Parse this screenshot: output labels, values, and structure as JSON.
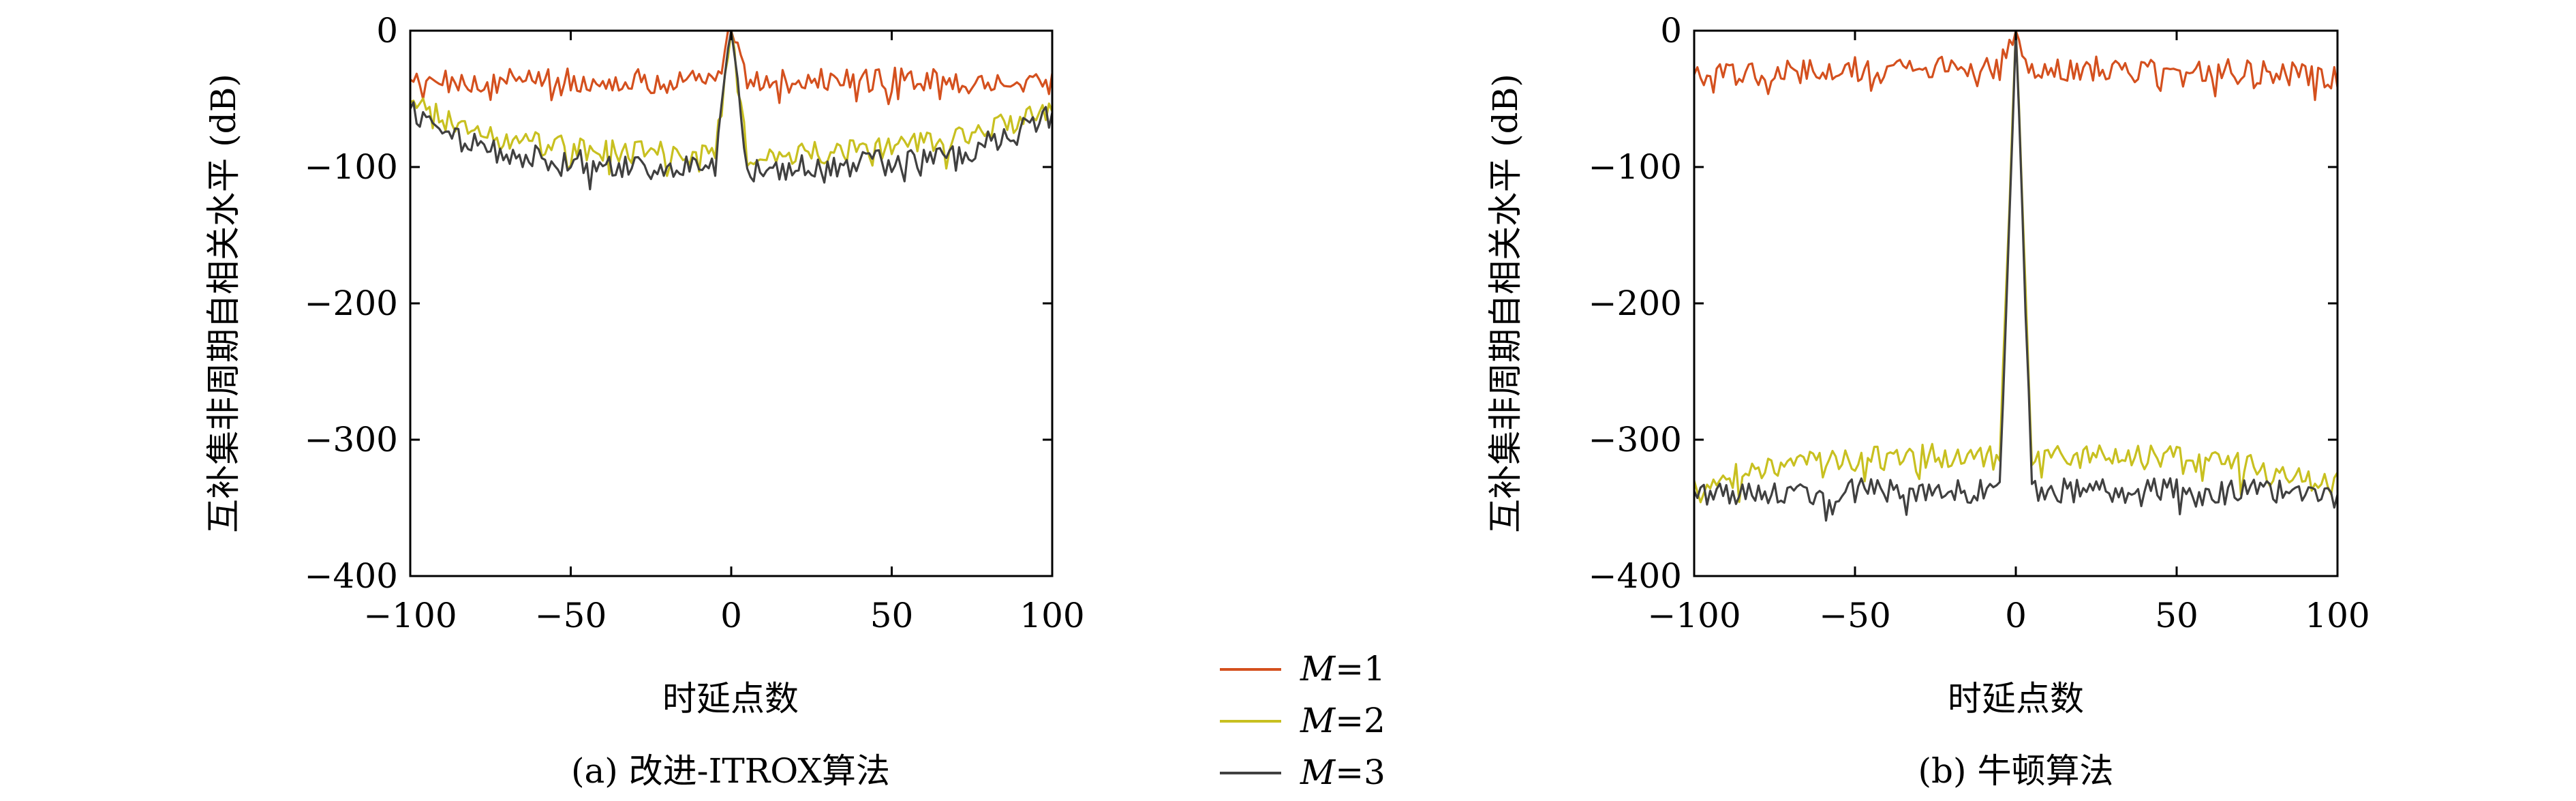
{
  "legend": {
    "entries": [
      {
        "var": "M",
        "eq": "=1",
        "color": "#d4501e"
      },
      {
        "var": "M",
        "eq": "=2",
        "color": "#c8c020"
      },
      {
        "var": "M",
        "eq": "=3",
        "color": "#404040"
      }
    ]
  },
  "chart_data": [
    {
      "type": "line",
      "caption": "(a) 改进-ITROX算法",
      "xlabel": "时延点数",
      "ylabel": "互补集非周期自相关水平 (dB)",
      "xlim": [
        -100,
        100
      ],
      "ylim": [
        -400,
        0
      ],
      "xticks": [
        -100,
        -50,
        0,
        50,
        100
      ],
      "xtick_labels": [
        "−100",
        "−50",
        "0",
        "50",
        "100"
      ],
      "yticks": [
        0,
        -100,
        -200,
        -300,
        -400
      ],
      "ytick_labels": [
        "0",
        "−100",
        "−200",
        "−300",
        "−400"
      ],
      "grid": false,
      "series": [
        {
          "name": "M=1",
          "color": "#d4501e",
          "peak": 0,
          "profile": "flat",
          "x": [
            -100,
            -75,
            -50,
            -25,
            -5,
            0,
            5,
            25,
            50,
            75,
            100
          ],
          "y": [
            -38,
            -37,
            -36,
            -37,
            -38,
            0,
            -38,
            -37,
            -36,
            -37,
            -38
          ]
        },
        {
          "name": "M=2",
          "color": "#c8c020",
          "peak": 0,
          "profile": "bowl",
          "x": [
            -100,
            -75,
            -50,
            -25,
            -5,
            0,
            5,
            25,
            50,
            75,
            100
          ],
          "y": [
            -55,
            -78,
            -86,
            -90,
            -92,
            0,
            -92,
            -90,
            -86,
            -78,
            -55
          ]
        },
        {
          "name": "M=3",
          "color": "#404040",
          "peak": 0,
          "profile": "bowl",
          "x": [
            -100,
            -75,
            -50,
            -25,
            -5,
            0,
            5,
            25,
            50,
            75,
            100
          ],
          "y": [
            -60,
            -88,
            -96,
            -100,
            -102,
            0,
            -102,
            -100,
            -96,
            -88,
            -60
          ]
        }
      ]
    },
    {
      "type": "line",
      "caption": "(b) 牛顿算法",
      "xlabel": "时延点数",
      "ylabel": "互补集非周期自相关水平 (dB)",
      "xlim": [
        -100,
        100
      ],
      "ylim": [
        -400,
        0
      ],
      "xticks": [
        -100,
        -50,
        0,
        50,
        100
      ],
      "xtick_labels": [
        "−100",
        "−50",
        "0",
        "50",
        "100"
      ],
      "yticks": [
        0,
        -100,
        -200,
        -300,
        -400
      ],
      "ytick_labels": [
        "0",
        "−100",
        "−200",
        "−300",
        "−400"
      ],
      "grid": false,
      "series": [
        {
          "name": "M=1",
          "color": "#d4501e",
          "peak": 0,
          "profile": "flat",
          "x": [
            -100,
            -75,
            -50,
            -25,
            -5,
            0,
            5,
            25,
            50,
            75,
            100
          ],
          "y": [
            -35,
            -30,
            -28,
            -28,
            -28,
            0,
            -28,
            -28,
            -28,
            -30,
            -35
          ]
        },
        {
          "name": "M=2",
          "color": "#c8c020",
          "peak": 0,
          "profile": "bowl",
          "x": [
            -100,
            -75,
            -50,
            -25,
            -5,
            0,
            5,
            25,
            50,
            75,
            100
          ],
          "y": [
            -333,
            -320,
            -314,
            -312,
            -311,
            0,
            -311,
            -312,
            -314,
            -320,
            -333
          ]
        },
        {
          "name": "M=3",
          "color": "#404040",
          "peak": 0,
          "profile": "flat",
          "x": [
            -100,
            -75,
            -50,
            -25,
            -5,
            0,
            5,
            25,
            50,
            75,
            100
          ],
          "y": [
            -341,
            -338,
            -337,
            -337,
            -338,
            0,
            -338,
            -337,
            -337,
            -338,
            -341
          ]
        }
      ]
    }
  ]
}
